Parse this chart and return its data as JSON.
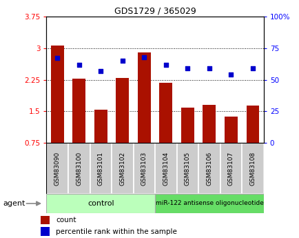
{
  "title": "GDS1729 / 365029",
  "categories": [
    "GSM83090",
    "GSM83100",
    "GSM83101",
    "GSM83102",
    "GSM83103",
    "GSM83104",
    "GSM83105",
    "GSM83106",
    "GSM83107",
    "GSM83108"
  ],
  "bar_values": [
    3.07,
    2.27,
    1.53,
    2.3,
    2.9,
    2.18,
    1.58,
    1.65,
    1.38,
    1.63
  ],
  "scatter_values": [
    67,
    62,
    57,
    65,
    68,
    62,
    59,
    59,
    54,
    59
  ],
  "bar_color": "#aa1100",
  "scatter_color": "#0000cc",
  "ylim_left": [
    0.75,
    3.75
  ],
  "ylim_right": [
    0,
    100
  ],
  "yticks_left": [
    0.75,
    1.5,
    2.25,
    3.0,
    3.75
  ],
  "ytick_labels_left": [
    "0.75",
    "1.5",
    "2.25",
    "3",
    "3.75"
  ],
  "yticks_right": [
    0,
    25,
    50,
    75,
    100
  ],
  "ytick_labels_right": [
    "0",
    "25",
    "50",
    "75",
    "100%"
  ],
  "hlines": [
    1.5,
    2.25,
    3.0
  ],
  "n_control": 5,
  "n_treatment": 5,
  "control_label": "control",
  "treatment_label": "miR-122 antisense oligonucleotide",
  "agent_label": "agent",
  "legend_bar_label": "count",
  "legend_scatter_label": "percentile rank within the sample",
  "bar_width": 0.6,
  "bg_color": "#ffffff",
  "plot_bg_color": "#ffffff",
  "xlabel_bg": "#cccccc",
  "control_color": "#bbffbb",
  "treatment_color": "#66dd66",
  "agent_arrow_color": "#888888"
}
